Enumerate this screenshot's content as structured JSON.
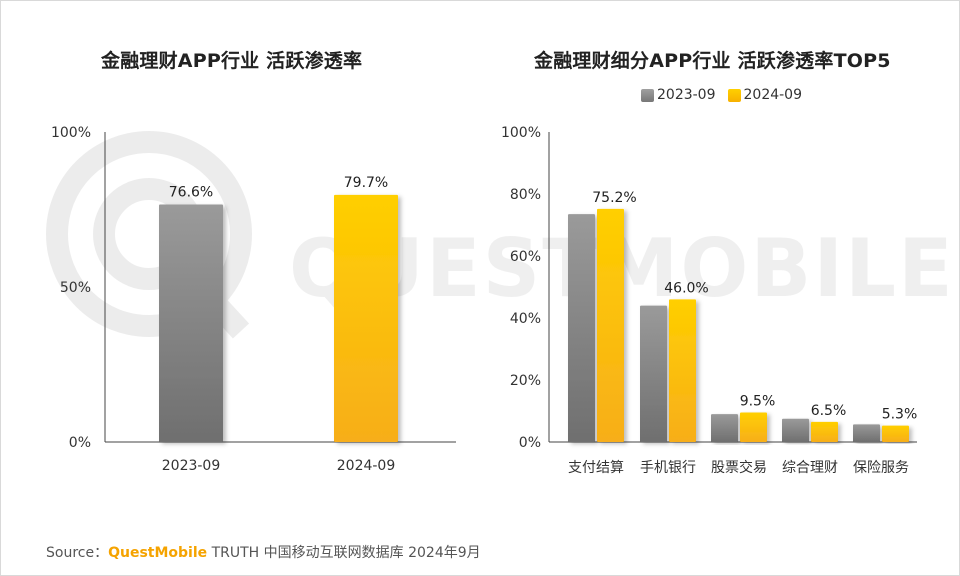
{
  "colors": {
    "series_2023": "#8c8c8c",
    "series_2024": "#ffc000",
    "brand": "#f5a300"
  },
  "watermark": {
    "text": "QUESTMOBILE"
  },
  "source": {
    "label": "Source：",
    "brand": "QuestMobile",
    "rest": " TRUTH 中国移动互联网数据库 2024年9月"
  },
  "chart_data": [
    {
      "type": "bar",
      "title": "金融理财APP行业 活跃渗透率",
      "categories": [
        "2023-09",
        "2024-09"
      ],
      "values": [
        76.6,
        79.7
      ],
      "value_labels": [
        "76.6%",
        "79.7%"
      ],
      "yticks": [
        "0%",
        "50%",
        "100%"
      ],
      "ylim": [
        0,
        100
      ],
      "grid": false
    },
    {
      "type": "bar",
      "title": "金融理财细分APP行业 活跃渗透率TOP5",
      "categories": [
        "支付结算",
        "手机银行",
        "股票交易",
        "综合理财",
        "保险服务"
      ],
      "series": [
        {
          "name": "2023-09",
          "values": [
            73.5,
            44.0,
            9.0,
            7.5,
            5.7
          ]
        },
        {
          "name": "2024-09",
          "values": [
            75.2,
            46.0,
            9.5,
            6.5,
            5.3
          ],
          "value_labels": [
            "75.2%",
            "46.0%",
            "9.5%",
            "6.5%",
            "5.3%"
          ]
        }
      ],
      "yticks": [
        "0%",
        "20%",
        "40%",
        "60%",
        "80%",
        "100%"
      ],
      "ylim": [
        0,
        100
      ],
      "legend": "top-center",
      "grid": false
    }
  ]
}
